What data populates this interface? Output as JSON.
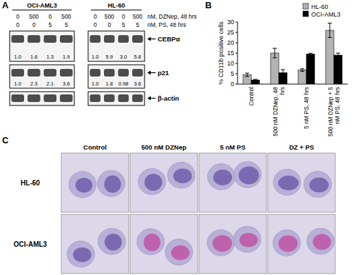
{
  "panel_labels": {
    "a": "A",
    "b": "B",
    "c": "C"
  },
  "blot": {
    "cell_lines": [
      "OCI-AML3",
      "HL-60"
    ],
    "treatments": [
      {
        "label": "nM, DZNep, 48 hrs",
        "doses": [
          [
            "0",
            "500",
            "0",
            "500"
          ],
          [
            "0",
            "500",
            "0",
            "500"
          ]
        ]
      },
      {
        "label": "nM, PS, 48 hrs",
        "doses": [
          [
            "0",
            "0",
            "5",
            "5"
          ],
          [
            "0",
            "0",
            "5",
            "5"
          ]
        ]
      }
    ],
    "bands": [
      {
        "name": "CEBPα",
        "quant": [
          [
            "1.0",
            "1.6",
            "1.3",
            "1.9"
          ],
          [
            "1.0",
            "5.9",
            "3.0",
            "5.8"
          ]
        ]
      },
      {
        "name": "p21",
        "quant": [
          [
            "1.0",
            "2.3",
            "2.1",
            "3.6"
          ],
          [
            "1.0",
            "1.8",
            "0.98",
            "3.6"
          ]
        ]
      },
      {
        "name": "β-actin"
      }
    ]
  },
  "chart_data": {
    "type": "bar",
    "y_label": "% CD11b positive cells",
    "categories": [
      "Control",
      "500 nM DZNep, 48 hrs",
      "5 nM PS, 48 hrs",
      "500 nM DZNep + 5 nM PS, 48 hrs"
    ],
    "series": [
      {
        "name": "HL-60",
        "color": "#b3b3b3",
        "values": [
          4.5,
          15,
          6.8,
          26
        ],
        "errors": [
          0.8,
          2.3,
          0.6,
          3.5
        ]
      },
      {
        "name": "OCI-AML3",
        "color": "#000000",
        "values": [
          2,
          5.5,
          14.5,
          14
        ],
        "errors": [
          0.3,
          1.5,
          0.4,
          1
        ]
      }
    ],
    "ylim": [
      0,
      30
    ],
    "yticks": [
      0,
      5,
      10,
      15,
      20,
      25,
      30
    ],
    "legend": "upper right"
  },
  "micrographs": {
    "columns": [
      "Control",
      "500 nM DZNep",
      "5 nM PS",
      "DZ + PS"
    ],
    "rows": [
      "HL-60",
      "OCI-AML3"
    ]
  }
}
